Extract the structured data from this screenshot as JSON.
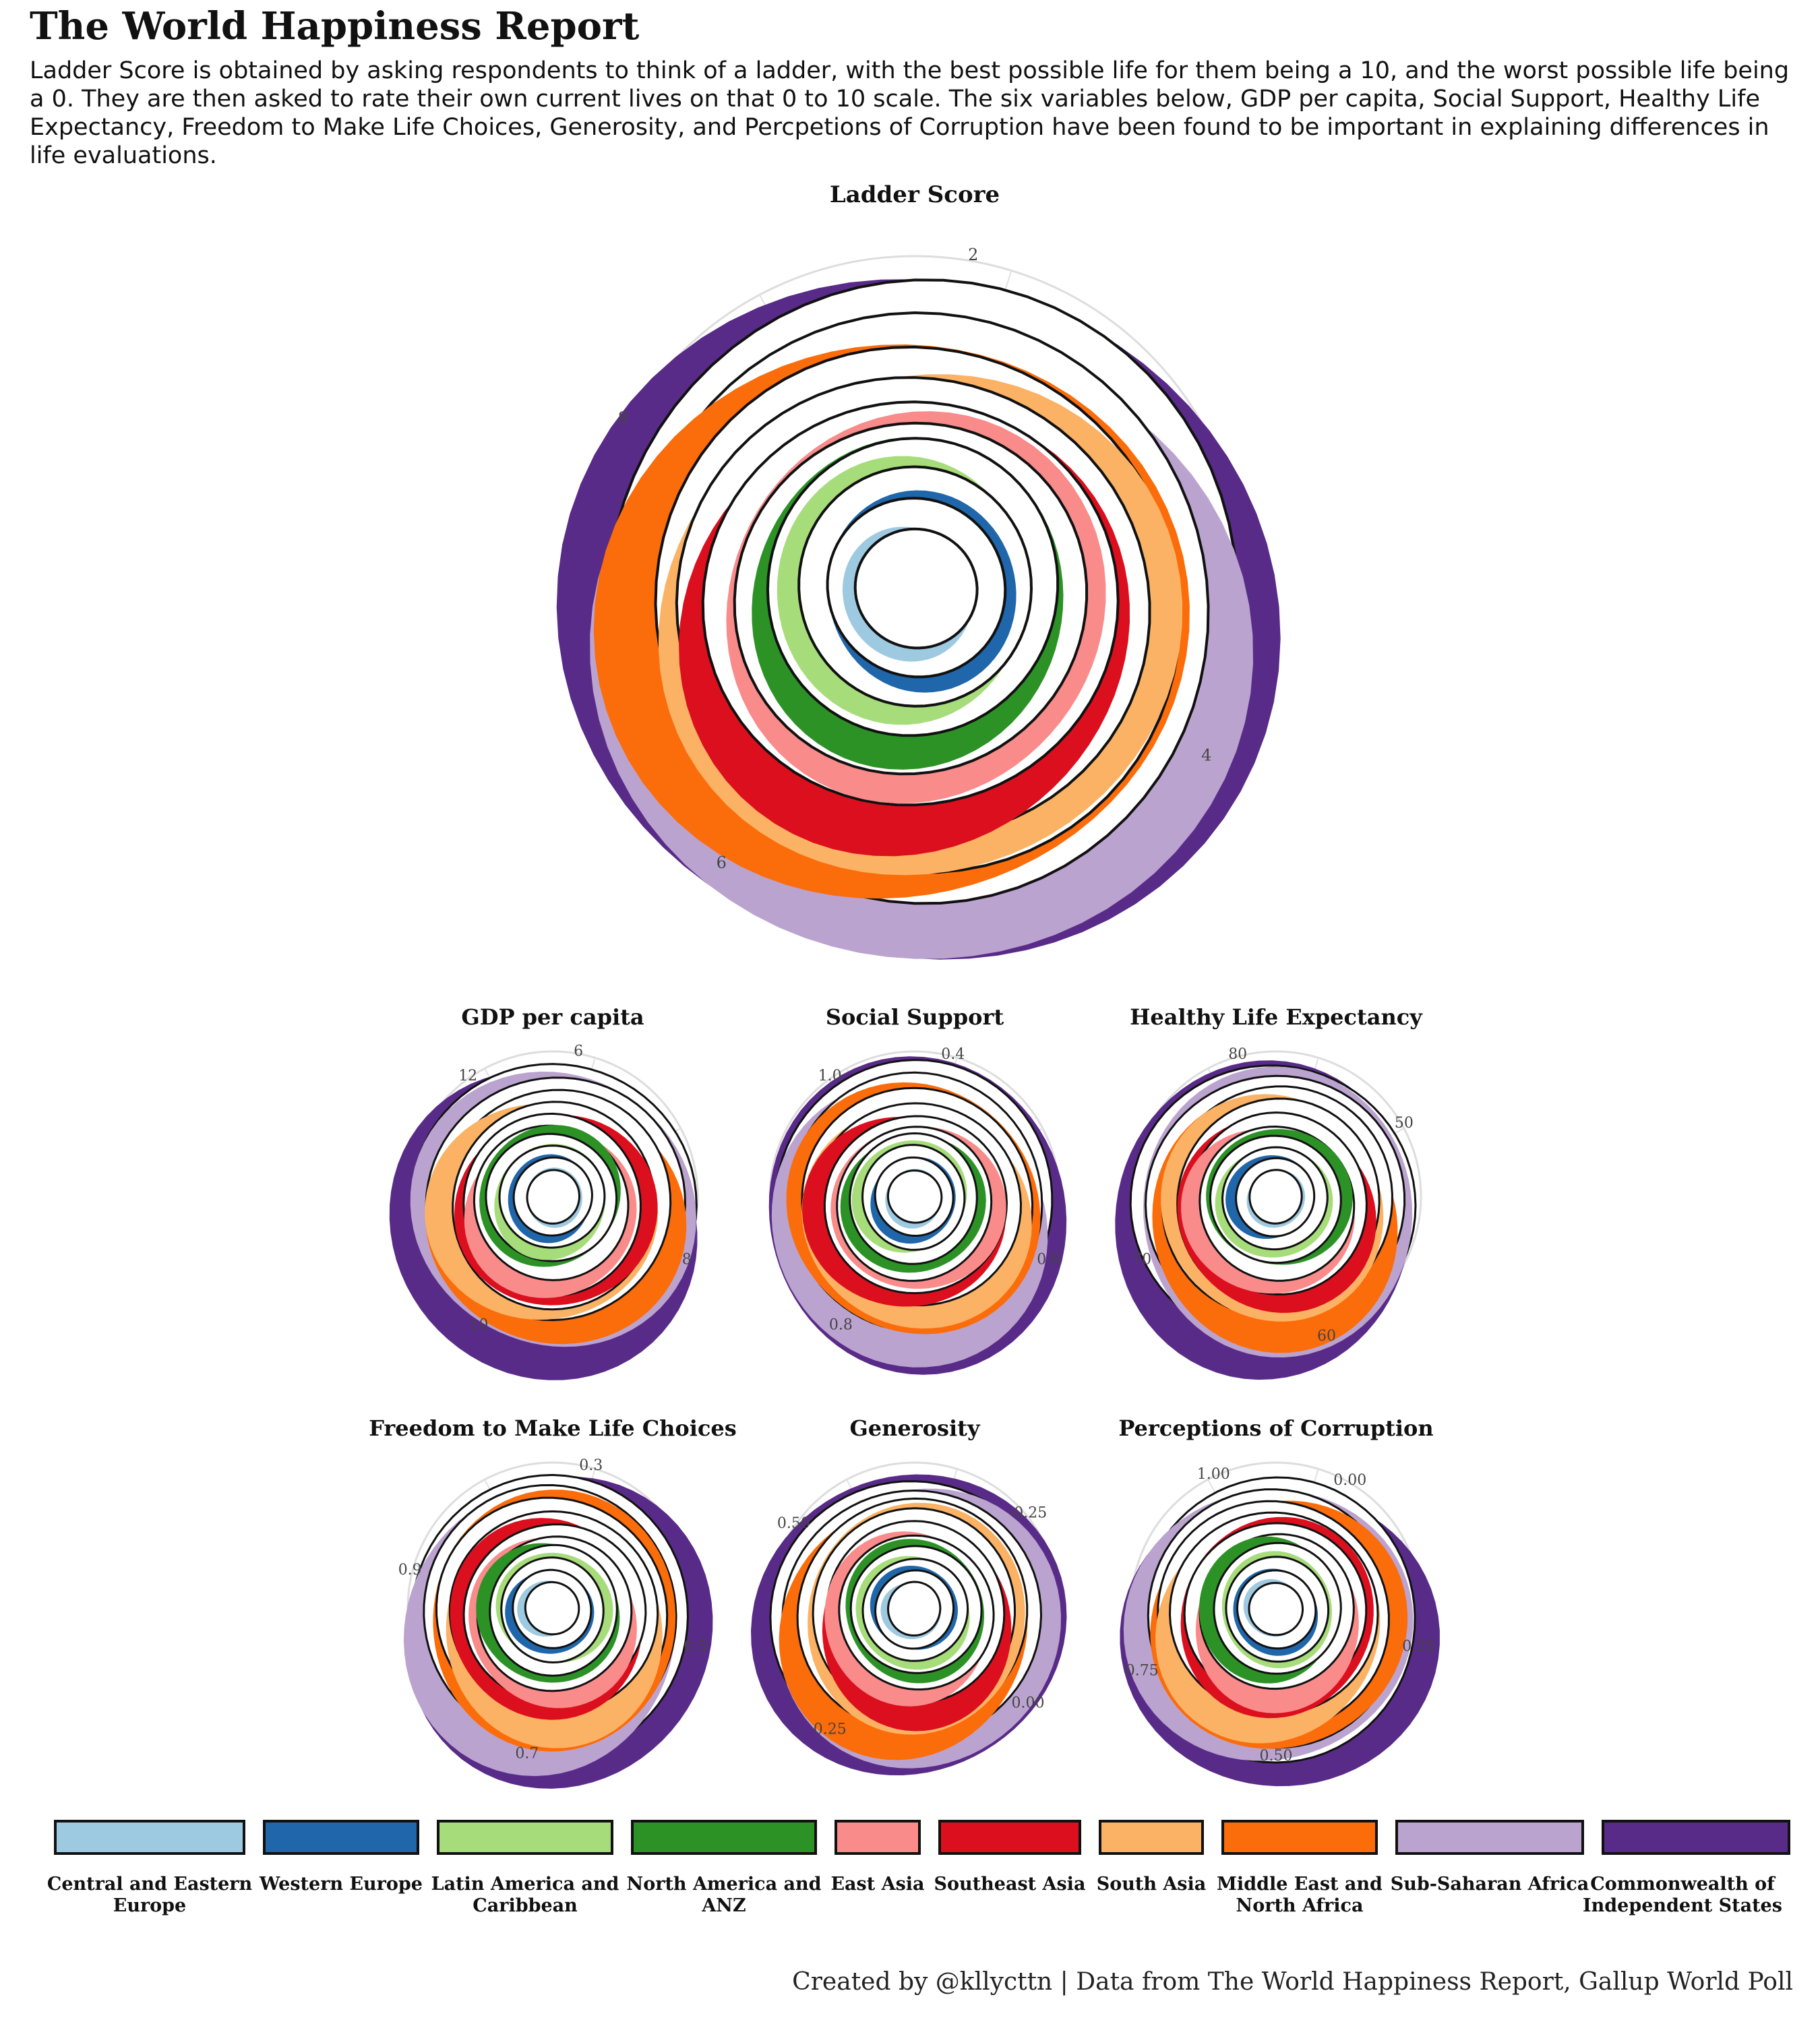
{
  "header": {
    "title": "The World Happiness Report",
    "description": "Ladder Score is obtained by asking respondents to think of a ladder, with the best possible life for them being a 10, and the worst possible life being a 0. They are then asked to rate their own current lives on that 0 to 10 scale. The six variables below, GDP per capita, Social Support, Healthy Life Expectancy, Freedom to Make Life Choices, Generosity, and Percpetions of Corruption have been found to be important in explaining differences in life evaluations."
  },
  "footer": {
    "credit": "Created by @kllycttn | Data from The World Happiness Report, Gallup World Poll"
  },
  "chart_data": [
    {
      "type": "area",
      "coordinate_system": "polar",
      "title": "Ladder Score",
      "tick_labels": [
        "2",
        "4",
        "6",
        "8"
      ],
      "grid": true,
      "regions": [
        "Central and Eastern Europe",
        "Western Europe",
        "Latin America and Caribbean",
        "North America and ANZ",
        "East Asia",
        "Southeast Asia",
        "South Asia",
        "Middle East and North Africa",
        "Sub-Saharan Africa",
        "Commonwealth of Independent States"
      ]
    },
    {
      "type": "area",
      "coordinate_system": "polar",
      "title": "GDP per capita",
      "tick_labels": [
        "6",
        "8",
        "10",
        "12"
      ],
      "grid": true
    },
    {
      "type": "area",
      "coordinate_system": "polar",
      "title": "Social Support",
      "tick_labels": [
        "0.4",
        "0.6",
        "0.8",
        "1.0"
      ],
      "grid": true
    },
    {
      "type": "area",
      "coordinate_system": "polar",
      "title": "Healthy Life Expectancy",
      "tick_labels": [
        "50",
        "60",
        "70",
        "80"
      ],
      "grid": true
    },
    {
      "type": "area",
      "coordinate_system": "polar",
      "title": "Freedom to Make Life Choices",
      "tick_labels": [
        "0.3",
        "0.5",
        "0.7",
        "0.9"
      ],
      "grid": true
    },
    {
      "type": "area",
      "coordinate_system": "polar",
      "title": "Generosity",
      "tick_labels": [
        "-0.25",
        "0.00",
        "0.25",
        "0.50"
      ],
      "grid": true
    },
    {
      "type": "area",
      "coordinate_system": "polar",
      "title": "Perceptions of Corruption",
      "tick_labels": [
        "0.00",
        "0.25",
        "0.50",
        "0.75",
        "1.00"
      ],
      "grid": true
    }
  ],
  "legend": {
    "items": [
      {
        "label": "Central and Eastern Europe",
        "color": "#9ecae1"
      },
      {
        "label": "Western Europe",
        "color": "#1f66aa"
      },
      {
        "label": "Latin America and Caribbean",
        "color": "#a6dc7a"
      },
      {
        "label": "North America and ANZ",
        "color": "#2c9226"
      },
      {
        "label": "East Asia",
        "color": "#f98b8b"
      },
      {
        "label": "Southeast Asia",
        "color": "#dc0f1e"
      },
      {
        "label": "South Asia",
        "color": "#fbb264"
      },
      {
        "label": "Middle East and North Africa",
        "color": "#fb6c0a"
      },
      {
        "label": "Sub-Saharan Africa",
        "color": "#bba3d0"
      },
      {
        "label": "Commonwealth of Independent States",
        "color": "#592b88"
      }
    ]
  }
}
